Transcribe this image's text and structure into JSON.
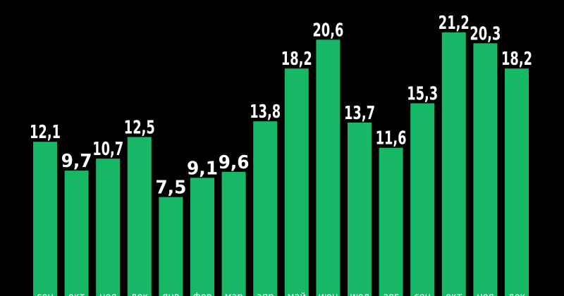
{
  "chart_data": {
    "type": "bar",
    "categories": [
      "сен",
      "окт",
      "ноя",
      "дек",
      "янв",
      "фев",
      "мар",
      "апр",
      "май",
      "июн",
      "июл",
      "авг",
      "сен",
      "окт",
      "ноя",
      "дек"
    ],
    "values": [
      12.1,
      9.7,
      10.7,
      12.5,
      7.5,
      9.1,
      9.6,
      13.8,
      18.2,
      20.6,
      13.7,
      11.6,
      15.3,
      21.2,
      20.3,
      18.2
    ],
    "value_labels": [
      "12,1",
      "9,7",
      "10,7",
      "12,5",
      "7,5",
      "9,1",
      "9,6",
      "13,8",
      "18,2",
      "20,6",
      "13,7",
      "11,6",
      "15,3",
      "21,2",
      "20,3",
      "18,2"
    ],
    "ylim": [
      0,
      22
    ],
    "grid": false,
    "colors": {
      "bar": "#16b866",
      "background": "#000000",
      "text": "#ffffff"
    }
  }
}
